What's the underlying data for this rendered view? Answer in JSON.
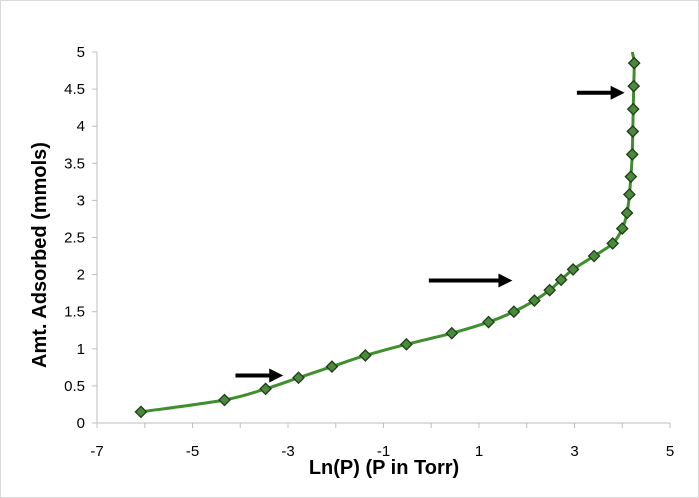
{
  "chart_data": {
    "type": "scatter",
    "xlabel": "Ln(P) (P in Torr)",
    "ylabel": "Amt. Adsorbed (mmols)",
    "xlim": [
      -7,
      5
    ],
    "ylim": [
      0,
      5
    ],
    "x_ticks": [
      "-7",
      "-5",
      "-3",
      "-1",
      "1",
      "3",
      "5"
    ],
    "y_ticks": [
      "0",
      "0.5",
      "1",
      "1.5",
      "2",
      "2.5",
      "3",
      "3.5",
      "4",
      "4.5",
      "5"
    ],
    "grid": false,
    "legend": "none",
    "series": [
      {
        "line_color": "#3f8f2f",
        "marker": "diamond",
        "marker_color": "#4a8a3c",
        "points": [
          {
            "x": -6.08,
            "y": 0.15
          },
          {
            "x": -4.33,
            "y": 0.31
          },
          {
            "x": -3.47,
            "y": 0.46
          },
          {
            "x": -2.78,
            "y": 0.61
          },
          {
            "x": -2.08,
            "y": 0.76
          },
          {
            "x": -1.38,
            "y": 0.91
          },
          {
            "x": -0.52,
            "y": 1.06
          },
          {
            "x": 0.43,
            "y": 1.21
          },
          {
            "x": 1.2,
            "y": 1.36
          },
          {
            "x": 1.73,
            "y": 1.5
          },
          {
            "x": 2.16,
            "y": 1.65
          },
          {
            "x": 2.48,
            "y": 1.79
          },
          {
            "x": 2.72,
            "y": 1.93
          },
          {
            "x": 2.97,
            "y": 2.07
          },
          {
            "x": 3.41,
            "y": 2.25
          },
          {
            "x": 3.8,
            "y": 2.42
          },
          {
            "x": 4.0,
            "y": 2.62
          },
          {
            "x": 4.1,
            "y": 2.83
          },
          {
            "x": 4.15,
            "y": 3.08
          },
          {
            "x": 4.18,
            "y": 3.32
          },
          {
            "x": 4.21,
            "y": 3.62
          },
          {
            "x": 4.22,
            "y": 3.93
          },
          {
            "x": 4.23,
            "y": 4.23
          },
          {
            "x": 4.24,
            "y": 4.54
          },
          {
            "x": 4.25,
            "y": 4.85
          }
        ],
        "curve_end": {
          "x": 4.21,
          "y": 5.0
        }
      }
    ],
    "annotations": [
      {
        "type": "arrow",
        "color": "#000000",
        "from": {
          "x": -4.1,
          "y": 0.64
        },
        "to": {
          "x": -3.1,
          "y": 0.64
        }
      },
      {
        "type": "arrow",
        "color": "#000000",
        "from": {
          "x": -0.05,
          "y": 1.92
        },
        "to": {
          "x": 1.7,
          "y": 1.92
        }
      },
      {
        "type": "arrow",
        "color": "#000000",
        "from": {
          "x": 3.05,
          "y": 4.45
        },
        "to": {
          "x": 4.05,
          "y": 4.45
        }
      }
    ]
  }
}
